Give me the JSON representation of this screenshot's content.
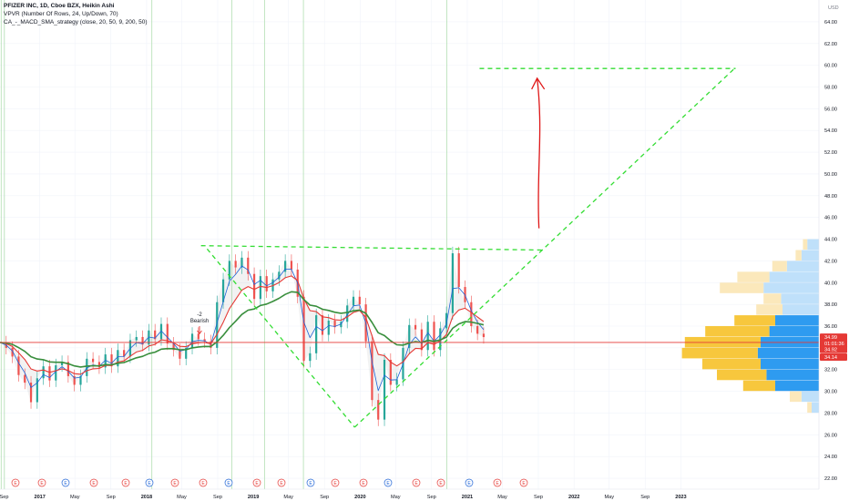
{
  "legend": {
    "title": "PFIZER INC, 1D, Cboe BZX, Heikin Ashi",
    "indicator1": "VPVR (Number Of Rows, 24, Up/Down, 70)",
    "indicator2": "CA_-_MACD_SMA_strategy (close, 20, 50, 9, 200, 50)"
  },
  "currency": "USD",
  "annotation": {
    "line1": "-2",
    "line2": "Bearish"
  },
  "price_tags": [
    {
      "label": "34.99",
      "value": 34.99,
      "color": "#e53935"
    },
    {
      "label": "01:01:36",
      "value": 34.4,
      "color": "#e53935"
    },
    {
      "label": "34.92",
      "value": 33.85,
      "color": "#e53935"
    },
    {
      "label": "34.14",
      "value": 33.15,
      "color": "#e53935"
    }
  ],
  "colors": {
    "grid": "#f0f3fa",
    "vline": "#b2dfb2",
    "ema_green": "#388e3c",
    "ema_red": "#e53935",
    "ema_blue": "#1e63d6",
    "trend_dash": "#33dd33",
    "arrow": "#e01818",
    "hline": "#e53935",
    "vp_up_strong": "#2e9bf0",
    "vp_up_light": "#bfe0fa",
    "vp_down_strong": "#f7c73d",
    "vp_down_light": "#fbe8bb",
    "candle_up": "#26a69a",
    "candle_down": "#ef5350"
  },
  "chart_data": {
    "type": "line",
    "y_axis": {
      "ticks": [
        "64.00",
        "62.00",
        "60.00",
        "58.00",
        "56.00",
        "54.00",
        "52.00",
        "50.00",
        "48.00",
        "46.00",
        "44.00",
        "42.00",
        "40.00",
        "38.00",
        "36.00",
        "34.00",
        "32.00",
        "30.00",
        "28.00",
        "26.00",
        "24.00",
        "22.00"
      ],
      "range": [
        21.0,
        65.5
      ]
    },
    "x_axis": {
      "ticks": [
        "Sep",
        "2017",
        "May",
        "Sep",
        "2018",
        "May",
        "Sep",
        "2019",
        "May",
        "Sep",
        "2020",
        "May",
        "Sep",
        "2021",
        "May",
        "Sep",
        "2022",
        "May",
        "Sep",
        "2023"
      ]
    },
    "series": [
      {
        "values": [
          34.5,
          34.0,
          33.2,
          31.5,
          30.8,
          29.0,
          31.2,
          32.3,
          31.0,
          32.4,
          32.7,
          31.4,
          30.6,
          31.4,
          33.0,
          32.7,
          32.2,
          33.4,
          32.3,
          33.8,
          33.2,
          34.7,
          35.0,
          34.3,
          35.6,
          34.8,
          36.2,
          34.4,
          33.8,
          33.0,
          34.0,
          35.3,
          34.8,
          34.6,
          34.0,
          38.2,
          40.3,
          42.0,
          41.4,
          42.3,
          40.8,
          38.5,
          40.6,
          39.2,
          40.3,
          41.0,
          42.0,
          41.2,
          38.7,
          32.8,
          33.5,
          37.0,
          35.2,
          36.5,
          35.9,
          36.4,
          37.9,
          38.7,
          38.0,
          34.6,
          29.2,
          27.4,
          32.9,
          30.6,
          31.1,
          34.0,
          36.1,
          35.7,
          33.8,
          36.4,
          33.8,
          35.8,
          37.2,
          42.7,
          39.6,
          38.2,
          36.0,
          35.3,
          34.99
        ]
      }
    ],
    "horizontal_line": 34.5,
    "trendlines": [
      [
        [
          "2018-07-06",
          43.4
        ],
        [
          "2021-09-17",
          43.0
        ]
      ],
      [
        [
          "2018-07-27",
          43.1
        ],
        [
          "2019-12-13",
          26.7
        ]
      ],
      [
        [
          "2019-12-13",
          26.7
        ],
        [
          "2023-07-07",
          59.8
        ]
      ],
      [
        [
          "2021-02-12",
          59.7
        ],
        [
          "2023-07-07",
          59.7
        ]
      ]
    ],
    "arrow": {
      "from": [
        "2021-09-03",
        45.0
      ],
      "to": [
        "2021-09-03",
        58.8
      ]
    },
    "volume_profile": [
      {
        "price": 43.5,
        "up": 0.08,
        "down": 0.03,
        "faded": true
      },
      {
        "price": 42.5,
        "up": 0.12,
        "down": 0.04,
        "faded": true
      },
      {
        "price": 41.5,
        "up": 0.22,
        "down": 0.1,
        "faded": true
      },
      {
        "price": 40.5,
        "up": 0.34,
        "down": 0.22,
        "faded": true
      },
      {
        "price": 39.5,
        "up": 0.38,
        "down": 0.3,
        "faded": true
      },
      {
        "price": 38.5,
        "up": 0.26,
        "down": 0.12,
        "faded": true
      },
      {
        "price": 37.5,
        "up": 0.25,
        "down": 0.18,
        "faded": true
      },
      {
        "price": 36.5,
        "up": 0.3,
        "down": 0.28,
        "faded": false
      },
      {
        "price": 35.5,
        "up": 0.34,
        "down": 0.44,
        "faded": false
      },
      {
        "price": 34.5,
        "up": 0.4,
        "down": 0.52,
        "faded": false
      },
      {
        "price": 33.5,
        "up": 0.42,
        "down": 0.52,
        "faded": false
      },
      {
        "price": 32.5,
        "up": 0.4,
        "down": 0.4,
        "faded": false
      },
      {
        "price": 31.5,
        "up": 0.36,
        "down": 0.34,
        "faded": false
      },
      {
        "price": 30.5,
        "up": 0.3,
        "down": 0.22,
        "faded": false
      },
      {
        "price": 29.5,
        "up": 0.12,
        "down": 0.08,
        "faded": true
      },
      {
        "price": 28.5,
        "up": 0.05,
        "down": 0.03,
        "faded": true
      }
    ]
  }
}
